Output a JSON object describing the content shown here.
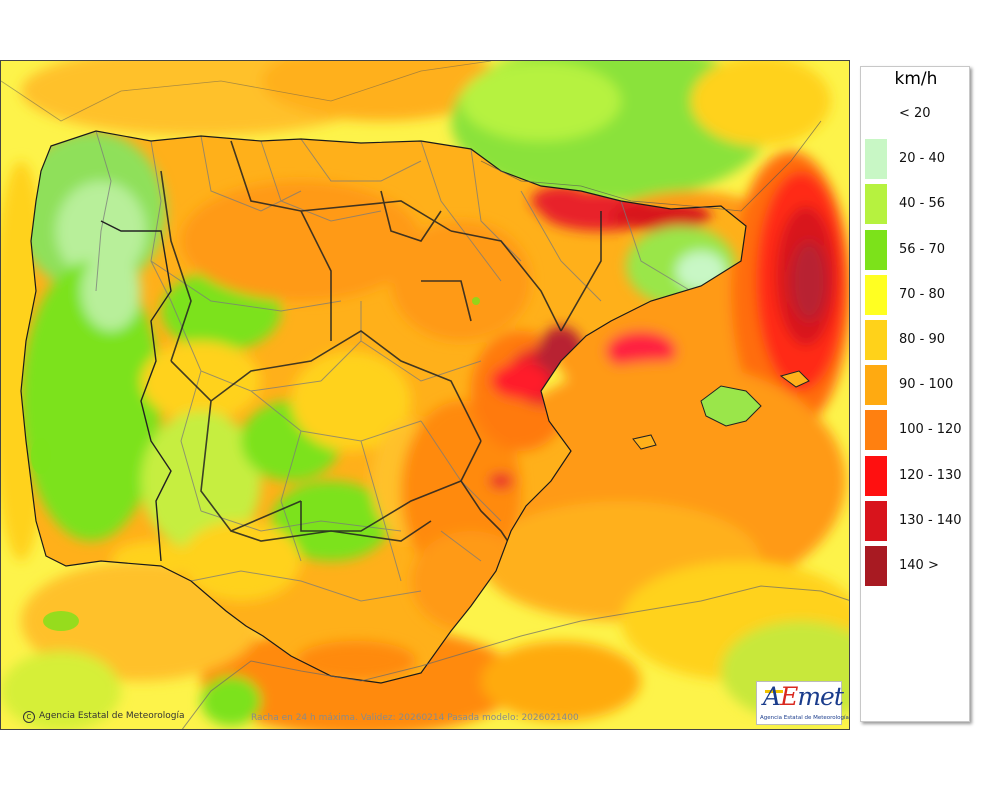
{
  "legend": {
    "unit": "km/h",
    "entries": [
      {
        "label": "< 20",
        "color": "#ffffff"
      },
      {
        "label": "20 - 40",
        "color": "#c8f7c5"
      },
      {
        "label": "40 - 56",
        "color": "#b6f23f"
      },
      {
        "label": "56 - 70",
        "color": "#7ce21a"
      },
      {
        "label": "70 - 80",
        "color": "#ffff22"
      },
      {
        "label": "80 - 90",
        "color": "#ffd21a"
      },
      {
        "label": "90 - 100",
        "color": "#ffaa11"
      },
      {
        "label": "100 - 120",
        "color": "#ff8010"
      },
      {
        "label": "120 - 130",
        "color": "#ff1010"
      },
      {
        "label": "130 - 140",
        "color": "#d8141c"
      },
      {
        "label": "140 >",
        "color": "#a81a22"
      }
    ]
  },
  "map": {
    "credit": "Agencia Estatal de Meteorología",
    "validity_text": "Racha en 24 h máxima. Validez: 20260214 Pasada modelo: 2026021400"
  },
  "logo": {
    "mark": "AEmet",
    "subtitle": "Agencia Estatal de Meteorología"
  }
}
